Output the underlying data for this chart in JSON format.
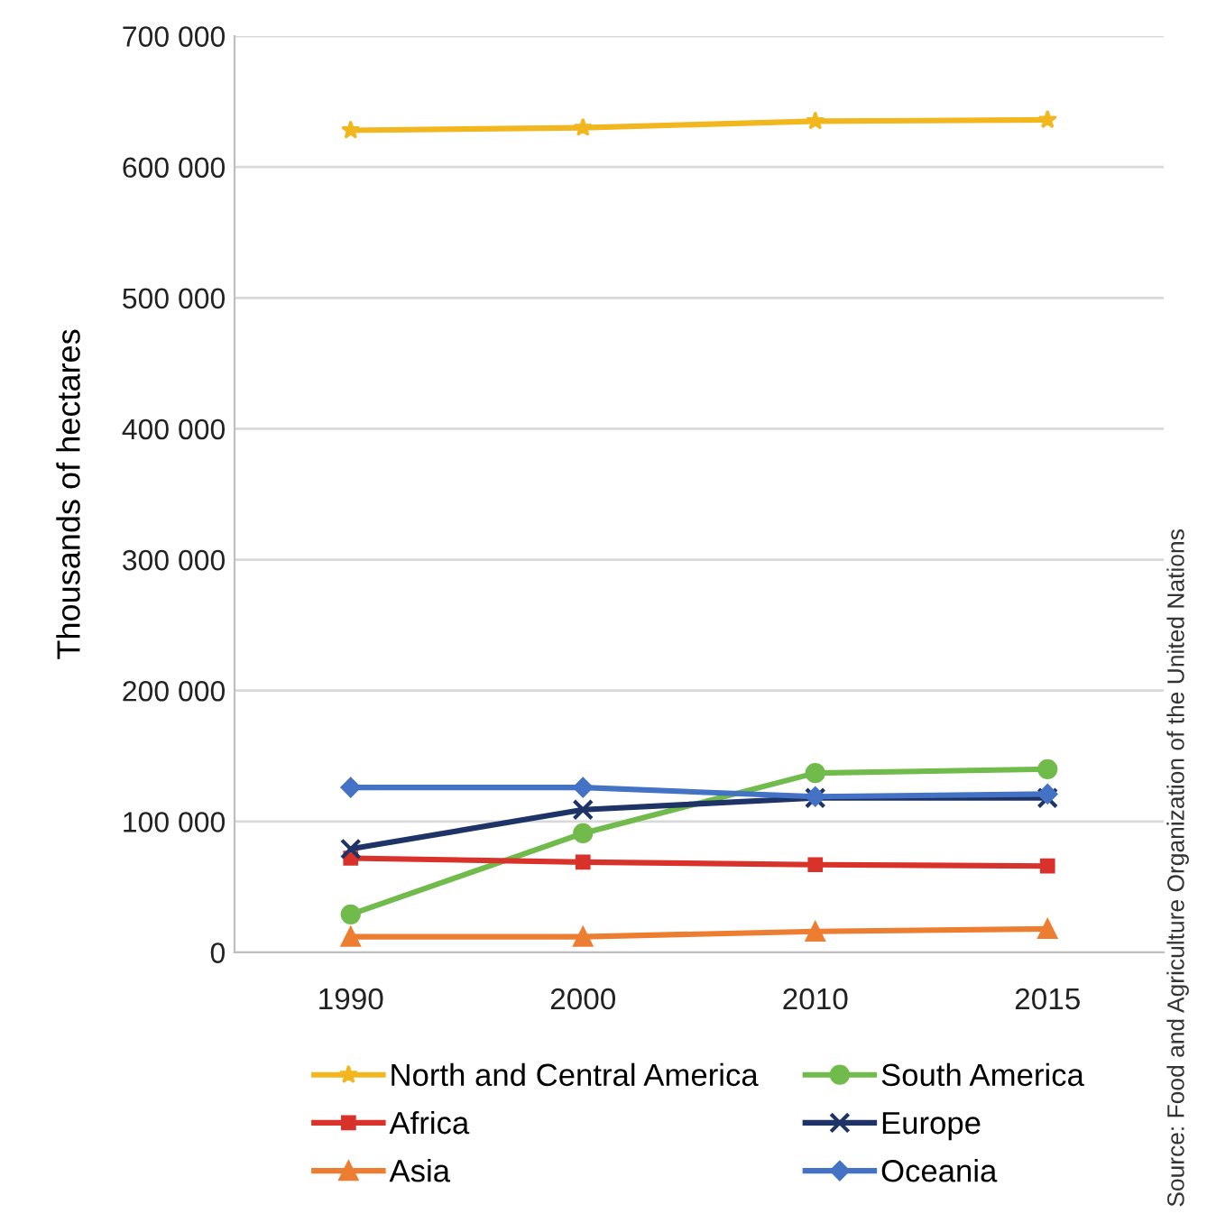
{
  "chart_data": {
    "type": "line",
    "ylabel": "Thousands of hectares",
    "categories": [
      "1990",
      "2000",
      "2010",
      "2015"
    ],
    "series": [
      {
        "name": "North and Central America",
        "color": "#f2b61e",
        "marker": "star",
        "values": [
          628000,
          630000,
          635000,
          636000
        ]
      },
      {
        "name": "South America",
        "color": "#71bb4c",
        "marker": "circle",
        "values": [
          29000,
          91000,
          137000,
          140000
        ]
      },
      {
        "name": "Africa",
        "color": "#d8322b",
        "marker": "square",
        "values": [
          72000,
          69000,
          67000,
          66000
        ]
      },
      {
        "name": "Europe",
        "color": "#1f3466",
        "marker": "cross",
        "values": [
          79000,
          109000,
          118000,
          118000
        ]
      },
      {
        "name": "Asia",
        "color": "#ed7d31",
        "marker": "triangle",
        "values": [
          12000,
          12000,
          16000,
          18000
        ]
      },
      {
        "name": "Oceania",
        "color": "#4472c4",
        "marker": "diamond",
        "values": [
          126000,
          126000,
          119000,
          121000
        ]
      }
    ],
    "ylim": [
      0,
      700000
    ],
    "yticks": [
      {
        "value": 0,
        "label": "0"
      },
      {
        "value": 100000,
        "label": "100 000"
      },
      {
        "value": 200000,
        "label": "200 000"
      },
      {
        "value": 300000,
        "label": "300 000"
      },
      {
        "value": 400000,
        "label": "400 000"
      },
      {
        "value": 500000,
        "label": "500 000"
      },
      {
        "value": 600000,
        "label": "600 000"
      },
      {
        "value": 700000,
        "label": "700 000"
      }
    ],
    "grid": "y",
    "legend": "bottom",
    "line_style": "solid",
    "annotations": [
      "Source: Food and Agriculture Organization of the United Nations"
    ]
  }
}
